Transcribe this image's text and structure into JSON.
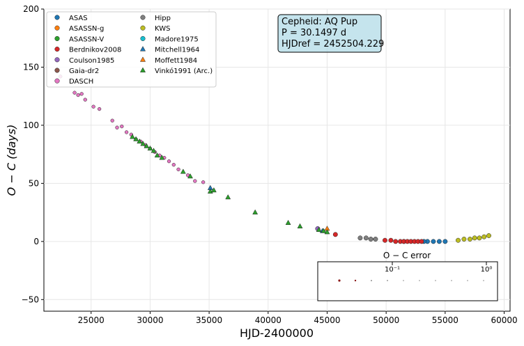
{
  "chart_data": {
    "type": "scatter",
    "xlabel": "HJD-2400000",
    "ylabel": "O − C (days)",
    "xlim": [
      21000,
      60500
    ],
    "ylim": [
      -60,
      200
    ],
    "grid": true,
    "legend_position": "top-left",
    "x_ticks": [
      "25000",
      "30000",
      "35000",
      "40000",
      "45000",
      "50000",
      "55000",
      "60000"
    ],
    "y_ticks": [
      "−50",
      "0",
      "50",
      "100",
      "150",
      "200"
    ],
    "x_tick_values": [
      25000,
      30000,
      35000,
      40000,
      45000,
      50000,
      55000,
      60000
    ],
    "y_tick_values": [
      -50,
      0,
      50,
      100,
      150,
      200
    ],
    "info_box": {
      "line1": "Cepheid: AQ Pup",
      "line2": "P = 30.1497 d",
      "line3": "HJDref = 2452504.229"
    },
    "error_legend": {
      "title": "O − C error",
      "tick_a": "10⁻¹",
      "tick_b": "10⁰"
    },
    "series": [
      {
        "name": "ASAS",
        "color": "#1f77b4",
        "marker": "circle",
        "x": [
          53500,
          54000,
          54500,
          55000,
          51500,
          53200
        ],
        "y": [
          0,
          0,
          0,
          0,
          0,
          0
        ]
      },
      {
        "name": "ASASSN-g",
        "color": "#ff7f0e",
        "marker": "circle",
        "x": [],
        "y": []
      },
      {
        "name": "ASASSN-V",
        "color": "#2ca02c",
        "marker": "circle",
        "x": [],
        "y": []
      },
      {
        "name": "Berdnikov2008",
        "color": "#d62728",
        "marker": "circle",
        "x": [
          45700,
          49900,
          50400,
          50800,
          51200,
          51500,
          51800,
          52100,
          52400,
          52700,
          53000
        ],
        "y": [
          6,
          1,
          1,
          0,
          0,
          0,
          0,
          0,
          0,
          0,
          0
        ]
      },
      {
        "name": "Coulson1985",
        "color": "#9467bd",
        "marker": "circle",
        "x": [
          44200
        ],
        "y": [
          11
        ]
      },
      {
        "name": "Gaia-dr2",
        "color": "#8c564b",
        "marker": "circle",
        "x": [],
        "y": []
      },
      {
        "name": "DASCH",
        "color": "#e377c2",
        "marker": "circle",
        "x": [
          22400,
          23600,
          23900,
          24200,
          24500,
          25200,
          25700,
          26800,
          27200,
          27600,
          28000,
          28400,
          28800,
          29200,
          29600,
          30000,
          30400,
          30800,
          31200,
          31600,
          32000,
          32400,
          33200,
          33800,
          34500
        ],
        "y": [
          142,
          128,
          126,
          127,
          122,
          116,
          114,
          104,
          98,
          99,
          94,
          92,
          88,
          86,
          83,
          80,
          77,
          74,
          72,
          69,
          66,
          62,
          57,
          52,
          51
        ]
      },
      {
        "name": "Hipp",
        "color": "#7f7f7f",
        "marker": "circle",
        "x": [
          47800,
          48300,
          48700,
          49100
        ],
        "y": [
          3,
          3,
          2,
          2
        ]
      },
      {
        "name": "KWS",
        "color": "#bcbd22",
        "marker": "circle",
        "x": [
          56100,
          56600,
          57100,
          57500,
          57900,
          58300,
          58700
        ],
        "y": [
          1,
          2,
          2,
          3,
          3,
          4,
          5
        ]
      },
      {
        "name": "Madore1975",
        "color": "#17becf",
        "marker": "circle",
        "x": [],
        "y": []
      },
      {
        "name": "Mitchell1964",
        "color": "#1f77b4",
        "marker": "triangle",
        "x": [
          35100,
          44600
        ],
        "y": [
          46,
          9
        ]
      },
      {
        "name": "Moffett1984",
        "color": "#ff7f0e",
        "marker": "triangle",
        "x": [
          45000
        ],
        "y": [
          11
        ]
      },
      {
        "name": "Vinkó1991 (Arc.)",
        "color": "#2ca02c",
        "marker": "triangle",
        "x": [
          28500,
          28800,
          29100,
          29400,
          29700,
          30000,
          30300,
          30600,
          31000,
          32800,
          33400,
          35100,
          35400,
          36600,
          38900,
          41700,
          42700,
          44300,
          44700,
          45000
        ],
        "y": [
          90,
          88,
          86,
          84,
          82,
          80,
          78,
          74,
          72,
          60,
          56,
          43,
          44,
          38,
          25,
          16,
          13,
          10,
          9,
          8
        ]
      }
    ]
  }
}
